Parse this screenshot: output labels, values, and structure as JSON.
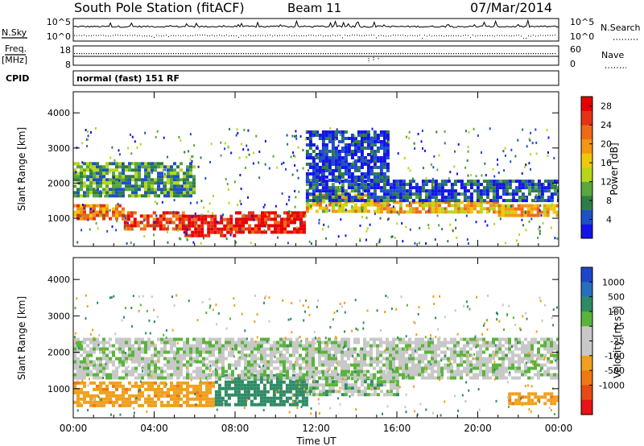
{
  "header": {
    "station": "South Pole Station (fitACF)",
    "beam": "Beam 11",
    "date": "07/Mar/2014"
  },
  "left_labels": {
    "nsky": "N.Sky",
    "freq": "Freq.",
    "freq_unit": "[MHz]",
    "cpid": "CPID"
  },
  "right_labels": {
    "nsearch": "N.Search",
    "nave": "Nave"
  },
  "cpid_text": "normal (fast) 151 RF",
  "chart_data": [
    {
      "type": "line",
      "panel": "noise",
      "series": [
        {
          "name": "N.Sky"
        },
        {
          "name": "N.Search"
        }
      ],
      "left_ticks": [
        "10^5",
        "10^0"
      ],
      "right_ticks": [
        "10^5",
        "10^0"
      ]
    },
    {
      "type": "line",
      "panel": "frequency-nave",
      "series": [
        {
          "name": "Freq."
        },
        {
          "name": "Nave"
        }
      ],
      "left_ticks": [
        "18",
        "8"
      ],
      "right_ticks": [
        "60",
        "0"
      ]
    },
    {
      "type": "heatmap",
      "panel": "power",
      "ylabel": "Slant Range [km]",
      "yticks": [
        1000,
        2000,
        3000,
        4000
      ],
      "ylim": [
        200,
        4600
      ],
      "colorbar": {
        "label": "Power [dB]",
        "ticks": [
          "4",
          "8",
          "12",
          "16",
          "20",
          "24",
          "28"
        ],
        "colors": [
          "#1414e6",
          "#1e50c8",
          "#2f7d46",
          "#57a83d",
          "#b8d619",
          "#f0c80a",
          "#f39614",
          "#ee6a16",
          "#e63214",
          "#e60000"
        ]
      },
      "bands": [
        {
          "t0": 0.0,
          "t1": 2.5,
          "r0": 1000,
          "r1": 1400,
          "level": 0.72
        },
        {
          "t0": 2.5,
          "t1": 5.5,
          "r0": 700,
          "r1": 1200,
          "level": 0.85
        },
        {
          "t0": 5.5,
          "t1": 8.0,
          "r0": 500,
          "r1": 1100,
          "level": 0.95
        },
        {
          "t0": 8.0,
          "t1": 11.5,
          "r0": 600,
          "r1": 1200,
          "level": 0.93
        },
        {
          "t0": 11.5,
          "t1": 15.0,
          "r0": 1200,
          "r1": 1700,
          "level": 0.55
        },
        {
          "t0": 15.0,
          "t1": 21.0,
          "r0": 1200,
          "r1": 1500,
          "level": 0.6
        },
        {
          "t0": 21.0,
          "t1": 24.0,
          "r0": 1100,
          "r1": 1400,
          "level": 0.62
        },
        {
          "t0": 0.0,
          "t1": 6.0,
          "r0": 1600,
          "r1": 2600,
          "level": 0.3
        },
        {
          "t0": 11.5,
          "t1": 24.0,
          "r0": 1500,
          "r1": 2100,
          "level": 0.15
        },
        {
          "t0": 11.5,
          "t1": 15.5,
          "r0": 2100,
          "r1": 3500,
          "level": 0.1
        }
      ]
    },
    {
      "type": "heatmap",
      "panel": "velocity",
      "xlabel": "Time UT",
      "ylabel": "Slant Range [km]",
      "xticks": [
        "00:00",
        "04:00",
        "08:00",
        "12:00",
        "16:00",
        "20:00",
        "00:00"
      ],
      "xlim": [
        0,
        24
      ],
      "yticks": [
        1000,
        2000,
        3000,
        4000
      ],
      "ylim": [
        200,
        4600
      ],
      "colorbar": {
        "label": "Velocity [m s",
        "label_sup": "-1",
        "label_end": "]",
        "ticks": [
          "1000",
          "500",
          "100",
          "25",
          "-25",
          "-100",
          "-500",
          "-1000"
        ],
        "colors": [
          "#1e46c8",
          "#286ebe",
          "#2e8a64",
          "#5ab43c",
          "#c8c8c8",
          "#c8c8c8",
          "#f0a01e",
          "#f07814",
          "#e64b14",
          "#e61414"
        ]
      },
      "bands": [
        {
          "t0": 0.0,
          "t1": 7.0,
          "r0": 500,
          "r1": 1200,
          "v": -250
        },
        {
          "t0": 7.0,
          "t1": 11.5,
          "r0": 600,
          "r1": 1400,
          "v": 150
        },
        {
          "t0": 11.5,
          "t1": 16.0,
          "r0": 800,
          "r1": 1500,
          "v": 20
        },
        {
          "t0": 0.0,
          "t1": 24.0,
          "r0": 1300,
          "r1": 2400,
          "v": 0
        },
        {
          "t0": 21.5,
          "t1": 24.0,
          "r0": 600,
          "r1": 900,
          "v": -250
        }
      ]
    }
  ]
}
